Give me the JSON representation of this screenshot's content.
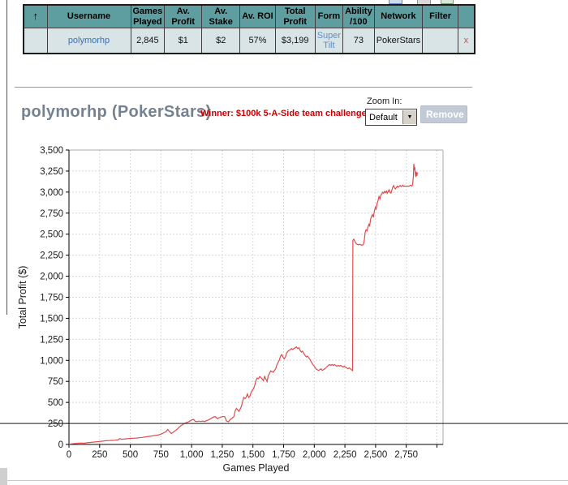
{
  "toolbar": {
    "icons": [
      "blue-panel-icon",
      "gray-panel-icon",
      "green-panel-icon",
      "green-squiggle-icon"
    ]
  },
  "results_table": {
    "sort_icon": "↑",
    "columns": [
      "Username",
      "Games Played",
      "Av. Profit",
      "Av. Stake",
      "Av. ROI",
      "Total Profit",
      "Form",
      "Ability /100",
      "Network",
      "Filter"
    ],
    "row": {
      "username": "polymorhp",
      "games_played": "2,845",
      "av_profit": "$1",
      "av_stake": "$2",
      "av_roi": "57%",
      "total_profit": "$3,199",
      "form": "Super Tilt",
      "ability": "73",
      "network": "PokerStars",
      "filter": "",
      "remove": "x"
    }
  },
  "header": {
    "title": "polymorhp (PokerStars)",
    "winner_note": "Winner: $100k 5-A-Side team challenge!",
    "zoom_label": "Zoom In:",
    "zoom_value": "Default",
    "remove_button": "Remove"
  },
  "colors": {
    "table_header_bg": "#5f9ea0",
    "table_row_bg": "#d9e4e7",
    "username_link": "#3b6fb5",
    "form_link": "#5c8fc7",
    "remove_x": "#c0504d",
    "title_text": "#75828f",
    "winner_text": "#cc0000",
    "chart_line": "#e14b4b",
    "reference_line": "#1a1a1a"
  },
  "chart_data": {
    "type": "line",
    "title": "",
    "xlabel": "Games Played",
    "ylabel": "Total Profit ($)",
    "xlim": [
      0,
      3050
    ],
    "ylim": [
      0,
      3500
    ],
    "x_ticks": [
      0,
      250,
      500,
      750,
      1000,
      1250,
      1500,
      1750,
      2000,
      2250,
      2500,
      2750
    ],
    "y_ticks": [
      0,
      250,
      500,
      750,
      1000,
      1250,
      1500,
      1750,
      2000,
      2250,
      2500,
      2750,
      3000,
      3250,
      3500
    ],
    "x_gridline_max": 3000,
    "grid": true,
    "legend": "none",
    "line_color": "#e14b4b",
    "reference_line_y": 250,
    "series": [
      {
        "name": "Total Profit",
        "points": [
          [
            0,
            4
          ],
          [
            25,
            8
          ],
          [
            50,
            12
          ],
          [
            75,
            14
          ],
          [
            100,
            16
          ],
          [
            125,
            14
          ],
          [
            150,
            20
          ],
          [
            175,
            24
          ],
          [
            200,
            28
          ],
          [
            225,
            32
          ],
          [
            250,
            36
          ],
          [
            275,
            40
          ],
          [
            300,
            44
          ],
          [
            325,
            46
          ],
          [
            350,
            48
          ],
          [
            375,
            50
          ],
          [
            400,
            54
          ],
          [
            415,
            70
          ],
          [
            430,
            62
          ],
          [
            450,
            64
          ],
          [
            475,
            68
          ],
          [
            500,
            72
          ],
          [
            525,
            74
          ],
          [
            550,
            76
          ],
          [
            575,
            80
          ],
          [
            600,
            84
          ],
          [
            625,
            90
          ],
          [
            650,
            95
          ],
          [
            675,
            100
          ],
          [
            700,
            106
          ],
          [
            725,
            112
          ],
          [
            750,
            122
          ],
          [
            775,
            140
          ],
          [
            790,
            150
          ],
          [
            805,
            178
          ],
          [
            820,
            152
          ],
          [
            835,
            130
          ],
          [
            850,
            145
          ],
          [
            865,
            162
          ],
          [
            880,
            178
          ],
          [
            895,
            200
          ],
          [
            910,
            220
          ],
          [
            925,
            235
          ],
          [
            940,
            250
          ],
          [
            955,
            258
          ],
          [
            970,
            265
          ],
          [
            985,
            278
          ],
          [
            1000,
            290
          ],
          [
            1015,
            298
          ],
          [
            1030,
            276
          ],
          [
            1045,
            272
          ],
          [
            1060,
            278
          ],
          [
            1075,
            272
          ],
          [
            1090,
            280
          ],
          [
            1105,
            272
          ],
          [
            1120,
            282
          ],
          [
            1135,
            290
          ],
          [
            1150,
            302
          ],
          [
            1165,
            315
          ],
          [
            1180,
            328
          ],
          [
            1195,
            330
          ],
          [
            1210,
            306
          ],
          [
            1225,
            318
          ],
          [
            1240,
            326
          ],
          [
            1255,
            332
          ],
          [
            1270,
            330
          ],
          [
            1285,
            278
          ],
          [
            1300,
            270
          ],
          [
            1315,
            298
          ],
          [
            1330,
            312
          ],
          [
            1345,
            332
          ],
          [
            1355,
            398
          ],
          [
            1365,
            428
          ],
          [
            1375,
            415
          ],
          [
            1385,
            392
          ],
          [
            1395,
            418
          ],
          [
            1405,
            450
          ],
          [
            1415,
            505
          ],
          [
            1425,
            560
          ],
          [
            1435,
            545
          ],
          [
            1445,
            562
          ],
          [
            1455,
            600
          ],
          [
            1465,
            558
          ],
          [
            1475,
            572
          ],
          [
            1485,
            618
          ],
          [
            1495,
            645
          ],
          [
            1505,
            662
          ],
          [
            1515,
            705
          ],
          [
            1525,
            762
          ],
          [
            1535,
            790
          ],
          [
            1545,
            782
          ],
          [
            1555,
            806
          ],
          [
            1565,
            795
          ],
          [
            1575,
            778
          ],
          [
            1585,
            758
          ],
          [
            1595,
            808
          ],
          [
            1605,
            778
          ],
          [
            1615,
            748
          ],
          [
            1625,
            818
          ],
          [
            1635,
            846
          ],
          [
            1645,
            875
          ],
          [
            1655,
            868
          ],
          [
            1665,
            858
          ],
          [
            1675,
            878
          ],
          [
            1685,
            898
          ],
          [
            1695,
            945
          ],
          [
            1705,
            975
          ],
          [
            1715,
            1002
          ],
          [
            1725,
            1048
          ],
          [
            1735,
            1068
          ],
          [
            1745,
            1038
          ],
          [
            1755,
            1018
          ],
          [
            1765,
            1042
          ],
          [
            1775,
            1088
          ],
          [
            1785,
            1108
          ],
          [
            1795,
            1118
          ],
          [
            1805,
            1128
          ],
          [
            1815,
            1140
          ],
          [
            1825,
            1128
          ],
          [
            1835,
            1142
          ],
          [
            1845,
            1150
          ],
          [
            1855,
            1160
          ],
          [
            1865,
            1140
          ],
          [
            1875,
            1150
          ],
          [
            1885,
            1118
          ],
          [
            1895,
            1098
          ],
          [
            1905,
            1110
          ],
          [
            1915,
            1080
          ],
          [
            1925,
            1058
          ],
          [
            1935,
            1040
          ],
          [
            1945,
            1050
          ],
          [
            1955,
            1030
          ],
          [
            1965,
            1010
          ],
          [
            1975,
            984
          ],
          [
            1985,
            958
          ],
          [
            1995,
            938
          ],
          [
            2005,
            918
          ],
          [
            2015,
            898
          ],
          [
            2025,
            888
          ],
          [
            2035,
            878
          ],
          [
            2045,
            890
          ],
          [
            2055,
            900
          ],
          [
            2065,
            880
          ],
          [
            2075,
            890
          ],
          [
            2085,
            900
          ],
          [
            2095,
            910
          ],
          [
            2105,
            928
          ],
          [
            2115,
            940
          ],
          [
            2125,
            950
          ],
          [
            2135,
            940
          ],
          [
            2145,
            950
          ],
          [
            2155,
            940
          ],
          [
            2165,
            950
          ],
          [
            2175,
            940
          ],
          [
            2185,
            930
          ],
          [
            2195,
            940
          ],
          [
            2205,
            930
          ],
          [
            2215,
            940
          ],
          [
            2225,
            930
          ],
          [
            2235,
            920
          ],
          [
            2245,
            930
          ],
          [
            2255,
            920
          ],
          [
            2265,
            910
          ],
          [
            2275,
            900
          ],
          [
            2285,
            910
          ],
          [
            2295,
            900
          ],
          [
            2305,
            885
          ],
          [
            2312,
            878
          ],
          [
            2315,
            2428
          ],
          [
            2322,
            2440
          ],
          [
            2330,
            2418
          ],
          [
            2340,
            2390
          ],
          [
            2350,
            2380
          ],
          [
            2360,
            2372
          ],
          [
            2370,
            2380
          ],
          [
            2380,
            2372
          ],
          [
            2390,
            2370
          ],
          [
            2400,
            2376
          ],
          [
            2408,
            2430
          ],
          [
            2415,
            2520
          ],
          [
            2422,
            2552
          ],
          [
            2430,
            2540
          ],
          [
            2438,
            2586
          ],
          [
            2445,
            2618
          ],
          [
            2452,
            2600
          ],
          [
            2460,
            2680
          ],
          [
            2468,
            2718
          ],
          [
            2475,
            2732
          ],
          [
            2482,
            2700
          ],
          [
            2490,
            2775
          ],
          [
            2498,
            2818
          ],
          [
            2505,
            2800
          ],
          [
            2512,
            2865
          ],
          [
            2520,
            2898
          ],
          [
            2528,
            2948
          ],
          [
            2535,
            2920
          ],
          [
            2542,
            2958
          ],
          [
            2550,
            2978
          ],
          [
            2558,
            2998
          ],
          [
            2565,
            2988
          ],
          [
            2572,
            3008
          ],
          [
            2580,
            2992
          ],
          [
            2588,
            3012
          ],
          [
            2595,
            2985
          ],
          [
            2602,
            3005
          ],
          [
            2610,
            3028
          ],
          [
            2618,
            2998
          ],
          [
            2625,
            2988
          ],
          [
            2632,
            3018
          ],
          [
            2640,
            3058
          ],
          [
            2648,
            3078
          ],
          [
            2655,
            3048
          ],
          [
            2662,
            3038
          ],
          [
            2670,
            3058
          ],
          [
            2678,
            3072
          ],
          [
            2685,
            3058
          ],
          [
            2692,
            3068
          ],
          [
            2700,
            3080
          ],
          [
            2708,
            3065
          ],
          [
            2715,
            3072
          ],
          [
            2722,
            3082
          ],
          [
            2730,
            3068
          ],
          [
            2738,
            3072
          ],
          [
            2745,
            3070
          ],
          [
            2755,
            3072
          ],
          [
            2765,
            3070
          ],
          [
            2775,
            3072
          ],
          [
            2785,
            3082
          ],
          [
            2795,
            3072
          ],
          [
            2802,
            3088
          ],
          [
            2808,
            3180
          ],
          [
            2812,
            3338
          ],
          [
            2816,
            3262
          ],
          [
            2820,
            3298
          ],
          [
            2824,
            3218
          ],
          [
            2828,
            3180
          ],
          [
            2832,
            3242
          ],
          [
            2836,
            3192
          ],
          [
            2840,
            3225
          ],
          [
            2845,
            3230
          ]
        ]
      }
    ]
  }
}
